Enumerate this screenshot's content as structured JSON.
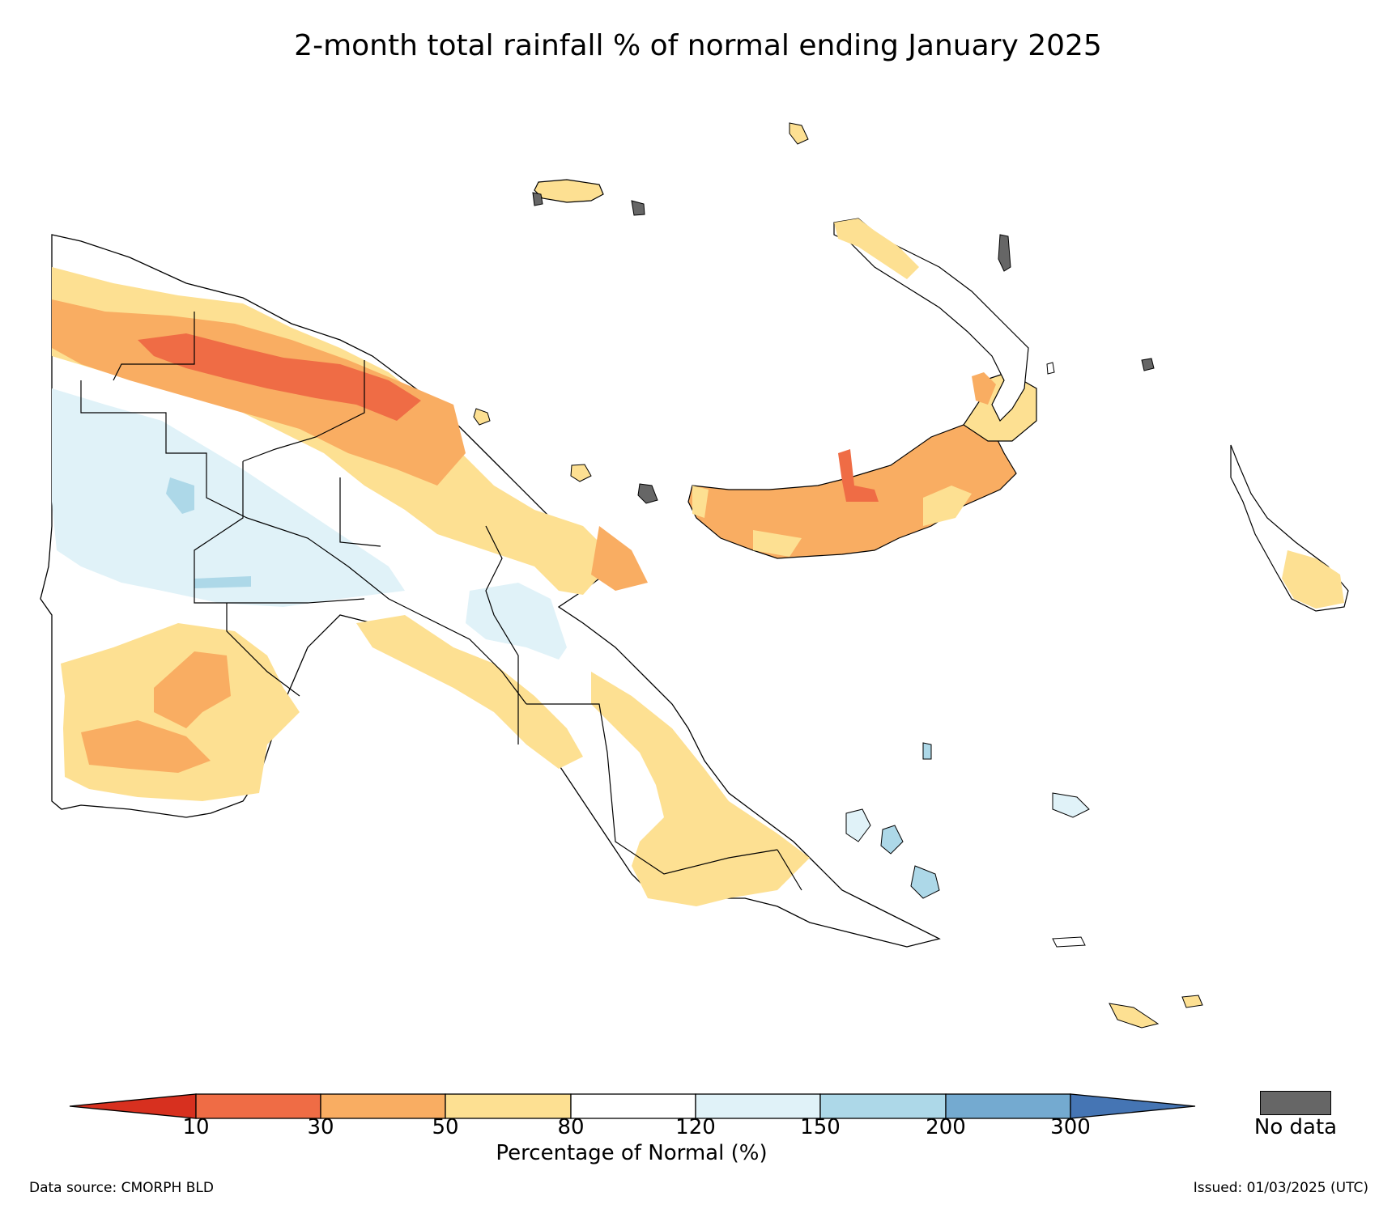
{
  "title": "2-month total rainfall % of normal ending January 2025",
  "colorbar": {
    "label": "Percentage of Normal (%)",
    "ticks": [
      "10",
      "30",
      "50",
      "80",
      "120",
      "150",
      "200",
      "300"
    ],
    "under_color": "#d7301f",
    "over_color": "#4575b4",
    "classes": [
      {
        "range": "10-30",
        "color": "#ef6c45"
      },
      {
        "range": "30-50",
        "color": "#f9ad62"
      },
      {
        "range": "50-80",
        "color": "#fde092"
      },
      {
        "range": "80-120",
        "color": "#ffffff"
      },
      {
        "range": "120-150",
        "color": "#e0f2f8"
      },
      {
        "range": "150-200",
        "color": "#add8e8"
      },
      {
        "range": "200-300",
        "color": "#74aad0"
      }
    ]
  },
  "no_data": {
    "label": "No data",
    "color": "#666666"
  },
  "footer": {
    "source": "Data source: CMORPH BLD",
    "issued": "Issued: 01/03/2025 (UTC)"
  }
}
